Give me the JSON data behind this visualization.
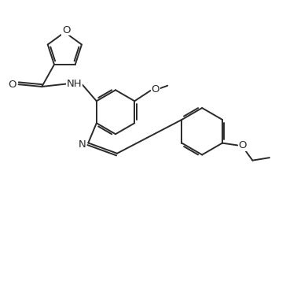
{
  "background_color": "#ffffff",
  "line_color": "#2a2a2a",
  "line_width": 1.4,
  "font_size": 9.5,
  "fig_width": 3.78,
  "fig_height": 3.58,
  "dpi": 100,
  "xlim": [
    -1.0,
    9.5
  ],
  "ylim": [
    -1.5,
    8.5
  ]
}
